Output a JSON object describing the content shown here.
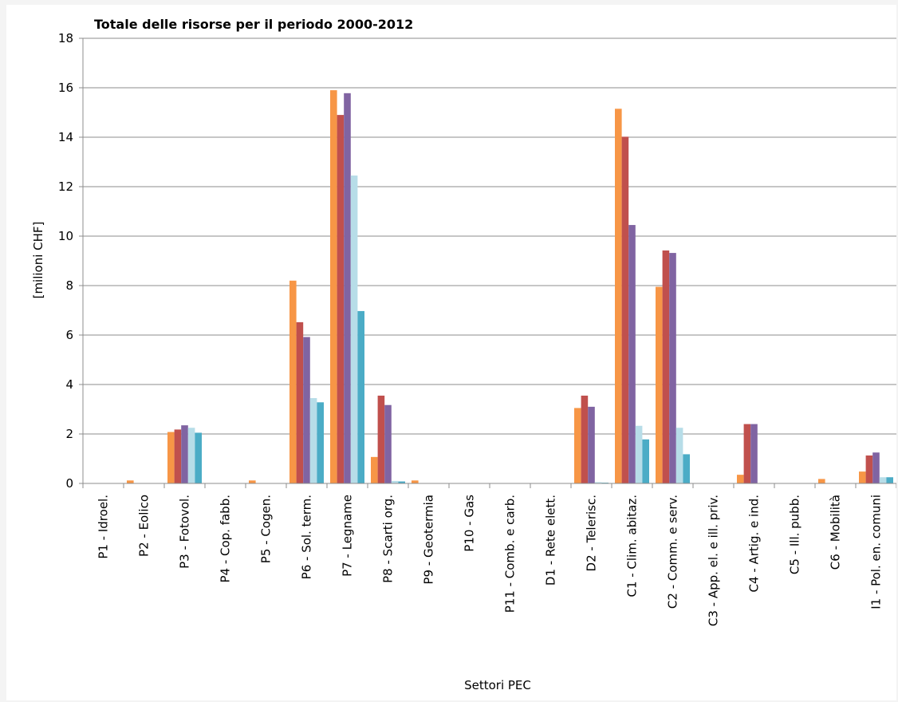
{
  "chart_data": {
    "type": "bar",
    "title": "Totale delle risorse per il periodo 2000-2012",
    "xlabel": "Settori PEC",
    "ylabel": "[milioni CHF]",
    "ylim": [
      0,
      18
    ],
    "yticks": [
      "0",
      "2",
      "4",
      "6",
      "8",
      "10",
      "12",
      "14",
      "16",
      "18"
    ],
    "grid": true,
    "legend": "none",
    "categories": [
      "P1 - Idroel.",
      "P2 - Eolico",
      "P3 - Fotovol.",
      "P4 - Cop. fabb.",
      "P5 - Cogen.",
      "P6 - Sol. term.",
      "P7 - Legname",
      "P8 - Scarti org.",
      "P9 - Geotermia",
      "P10 - Gas",
      "P11 - Comb. e carb.",
      "D1 - Rete elett.",
      "D2 - Telerisc.",
      "C1 - Clim. abitaz.",
      "C2 - Comm. e serv.",
      "C3 - App. el. e ill. priv.",
      "C4 - Artig. e ind.",
      "C5 - Ill. pubb.",
      "C6 - Mobilità",
      "I1 - Pol. en. comuni"
    ],
    "series": [
      {
        "color": "#f79646",
        "values": [
          0,
          0.12,
          2.08,
          0,
          0.12,
          8.2,
          15.9,
          1.07,
          0.12,
          0,
          0,
          0,
          3.05,
          15.15,
          7.95,
          0,
          0.35,
          0,
          0.18,
          0.48
        ]
      },
      {
        "color": "#c0504d",
        "values": [
          0,
          0,
          2.18,
          0,
          0,
          6.52,
          14.9,
          3.55,
          0,
          0,
          0,
          0,
          3.55,
          14.02,
          9.42,
          0,
          2.4,
          0,
          0,
          1.13
        ]
      },
      {
        "color": "#8064a2",
        "values": [
          0,
          0,
          2.35,
          0,
          0,
          5.92,
          15.78,
          3.17,
          0,
          0,
          0,
          0,
          3.1,
          10.45,
          9.32,
          0,
          2.4,
          0,
          0,
          1.25
        ]
      },
      {
        "color": "#b7dde8",
        "values": [
          0,
          0,
          2.25,
          0,
          0,
          3.45,
          12.45,
          0.1,
          0,
          0,
          0,
          0,
          0.05,
          2.33,
          2.25,
          0,
          0,
          0,
          0,
          0.25
        ]
      },
      {
        "color": "#4bacc6",
        "values": [
          0,
          0,
          2.05,
          0,
          0,
          3.28,
          6.97,
          0.08,
          0,
          0,
          0,
          0,
          0.03,
          1.78,
          1.18,
          0,
          0,
          0,
          0,
          0.25
        ]
      }
    ]
  }
}
